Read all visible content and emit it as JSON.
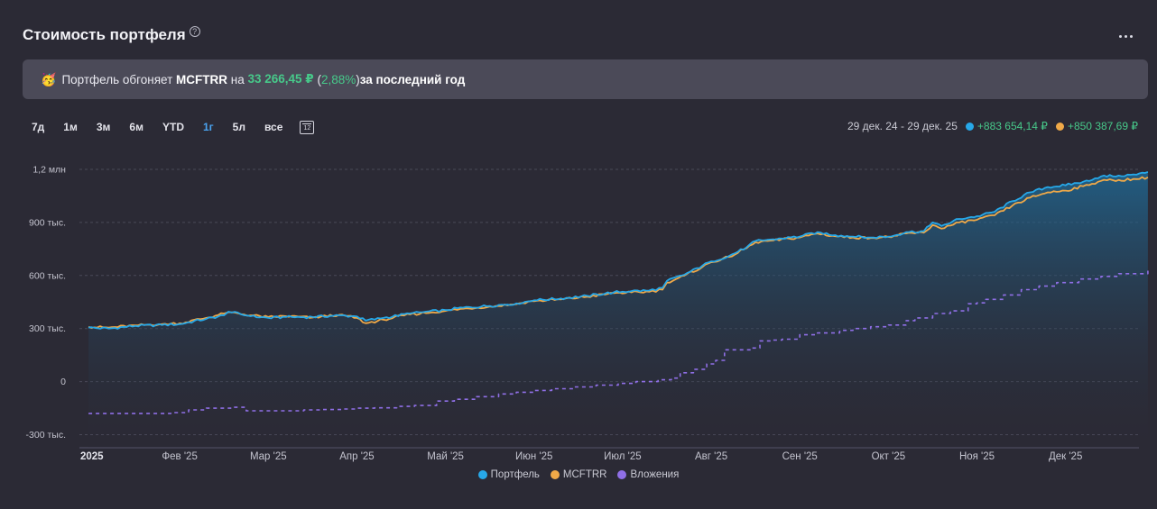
{
  "header": {
    "title": "Стоимость портфеля",
    "help_glyph": "?"
  },
  "banner": {
    "emoji": "🥳",
    "text_before": "Портфель обгоняет ",
    "benchmark": "MCFTRR",
    "text_mid": " на ",
    "amount": "33 266,45 ₽",
    "pct_open": " (",
    "pct": "2,88%",
    "pct_close": ")",
    "text_after": " за последний год"
  },
  "ranges": {
    "items": [
      "7д",
      "1м",
      "3м",
      "6м",
      "YTD",
      "1г",
      "5л",
      "все"
    ],
    "active": "1г",
    "calendar_label": "12"
  },
  "summary": {
    "period": "29 дек. 24 - 29 дек. 25",
    "portfolio_change": "+883 654,14 ₽",
    "benchmark_change": "+850 387,69 ₽"
  },
  "colors": {
    "portfolio": "#27a8e8",
    "benchmark": "#f0a948",
    "investments": "#8f6fe6",
    "positive": "#47c98a"
  },
  "chart_data": {
    "type": "line",
    "yunit": "₽",
    "ylim": [
      -380000,
      1220000
    ],
    "yticks": [
      {
        "value": 1200000,
        "label": "1,2 млн"
      },
      {
        "value": 900000,
        "label": "900 тыс."
      },
      {
        "value": 600000,
        "label": "600 тыс."
      },
      {
        "value": 300000,
        "label": "300 тыс."
      },
      {
        "value": 0,
        "label": "0"
      },
      {
        "value": -300000,
        "label": "-300 тыс."
      }
    ],
    "xticks": [
      {
        "label": "2025",
        "month": 0,
        "bold": true
      },
      {
        "label": "Фев '25",
        "month": 1
      },
      {
        "label": "Мар '25",
        "month": 2
      },
      {
        "label": "Апр '25",
        "month": 3
      },
      {
        "label": "Май '25",
        "month": 4
      },
      {
        "label": "Июн '25",
        "month": 5
      },
      {
        "label": "Июл '25",
        "month": 6
      },
      {
        "label": "Авг '25",
        "month": 7
      },
      {
        "label": "Сен '25",
        "month": 8
      },
      {
        "label": "Окт '25",
        "month": 9
      },
      {
        "label": "Ноя '25",
        "month": 10
      },
      {
        "label": "Дек '25",
        "month": 11
      }
    ],
    "xlim": [
      -0.03,
      11.93
    ],
    "grid": "horizontal-dashed",
    "legend_position": "bottom-center",
    "series": [
      {
        "name": "Портфель",
        "color": "#27a8e8",
        "style": "solid",
        "area": true,
        "x": [
          -0.03,
          0.2,
          0.5,
          0.8,
          1.0,
          1.3,
          1.5,
          1.55,
          1.8,
          2.0,
          2.2,
          2.5,
          2.8,
          3.0,
          3.1,
          3.3,
          3.6,
          4.0,
          4.2,
          4.5,
          4.8,
          5.0,
          5.3,
          5.6,
          5.9,
          6.1,
          6.3,
          6.45,
          6.5,
          6.7,
          6.9,
          7.0,
          7.2,
          7.4,
          7.5,
          7.7,
          8.0,
          8.2,
          8.4,
          8.6,
          8.8,
          9.0,
          9.1,
          9.2,
          9.4,
          9.5,
          9.6,
          9.8,
          10.0,
          10.2,
          10.4,
          10.6,
          10.8,
          11.0,
          11.2,
          11.4,
          11.6,
          11.8,
          11.93
        ],
        "values": [
          305000,
          300000,
          315000,
          320000,
          325000,
          355000,
          375000,
          395000,
          370000,
          360000,
          365000,
          365000,
          375000,
          368000,
          345000,
          360000,
          385000,
          405000,
          418000,
          428000,
          442000,
          460000,
          470000,
          485000,
          505000,
          512000,
          515000,
          530000,
          570000,
          605000,
          655000,
          680000,
          710000,
          760000,
          795000,
          805000,
          820000,
          845000,
          828000,
          820000,
          815000,
          820000,
          830000,
          845000,
          850000,
          900000,
          880000,
          920000,
          935000,
          960000,
          1020000,
          1070000,
          1100000,
          1110000,
          1130000,
          1160000,
          1165000,
          1170000,
          1185000
        ]
      },
      {
        "name": "MCFTRR",
        "color": "#f0a948",
        "style": "solid",
        "area": false,
        "x": [
          -0.03,
          0.2,
          0.5,
          0.8,
          1.0,
          1.3,
          1.5,
          1.55,
          1.8,
          2.0,
          2.2,
          2.5,
          2.8,
          3.0,
          3.1,
          3.3,
          3.6,
          4.0,
          4.2,
          4.5,
          4.8,
          5.0,
          5.3,
          5.6,
          5.9,
          6.1,
          6.3,
          6.45,
          6.5,
          6.7,
          6.9,
          7.0,
          7.2,
          7.4,
          7.5,
          7.7,
          8.0,
          8.2,
          8.4,
          8.6,
          8.8,
          9.0,
          9.1,
          9.2,
          9.4,
          9.5,
          9.6,
          9.8,
          10.0,
          10.2,
          10.4,
          10.6,
          10.8,
          11.0,
          11.2,
          11.4,
          11.6,
          11.8,
          11.93
        ],
        "values": [
          310000,
          305000,
          318000,
          325000,
          330000,
          360000,
          385000,
          392000,
          375000,
          365000,
          370000,
          362000,
          378000,
          360000,
          330000,
          350000,
          380000,
          400000,
          412000,
          425000,
          438000,
          455000,
          465000,
          480000,
          500000,
          505000,
          508000,
          520000,
          560000,
          600000,
          648000,
          675000,
          705000,
          755000,
          788000,
          798000,
          815000,
          838000,
          822000,
          815000,
          812000,
          818000,
          825000,
          838000,
          842000,
          885000,
          865000,
          900000,
          915000,
          940000,
          995000,
          1040000,
          1070000,
          1080000,
          1105000,
          1135000,
          1140000,
          1145000,
          1155000
        ]
      },
      {
        "name": "Вложения",
        "color": "#8f6fe6",
        "style": "dashed",
        "area": false,
        "x": [
          -0.03,
          0.9,
          1.1,
          1.3,
          1.6,
          1.75,
          2.0,
          2.2,
          2.4,
          2.6,
          2.85,
          3.0,
          3.2,
          3.45,
          3.65,
          3.9,
          4.1,
          4.35,
          4.6,
          4.8,
          5.0,
          5.2,
          5.45,
          5.7,
          5.95,
          6.15,
          6.4,
          6.55,
          6.65,
          6.8,
          6.95,
          7.05,
          7.15,
          7.4,
          7.45,
          7.55,
          7.7,
          7.8,
          8.0,
          8.2,
          8.45,
          8.6,
          8.8,
          9.0,
          9.2,
          9.3,
          9.5,
          9.7,
          9.9,
          10.0,
          10.1,
          10.3,
          10.5,
          10.7,
          10.9,
          11.15,
          11.4,
          11.6,
          11.93
        ],
        "values": [
          -180000,
          -175000,
          -160000,
          -150000,
          -145000,
          -165000,
          -165000,
          -165000,
          -160000,
          -158000,
          -155000,
          -150000,
          -148000,
          -140000,
          -135000,
          -110000,
          -100000,
          -85000,
          -70000,
          -60000,
          -50000,
          -40000,
          -30000,
          -20000,
          -10000,
          0,
          10000,
          20000,
          50000,
          70000,
          100000,
          120000,
          180000,
          180000,
          190000,
          230000,
          235000,
          240000,
          265000,
          275000,
          290000,
          300000,
          310000,
          320000,
          345000,
          360000,
          385000,
          400000,
          440000,
          445000,
          465000,
          490000,
          520000,
          540000,
          560000,
          580000,
          595000,
          610000,
          630000
        ]
      }
    ]
  },
  "legend": {
    "items": [
      {
        "label": "Портфель",
        "color": "#27a8e8"
      },
      {
        "label": "MCFTRR",
        "color": "#f0a948"
      },
      {
        "label": "Вложения",
        "color": "#8f6fe6"
      }
    ]
  }
}
